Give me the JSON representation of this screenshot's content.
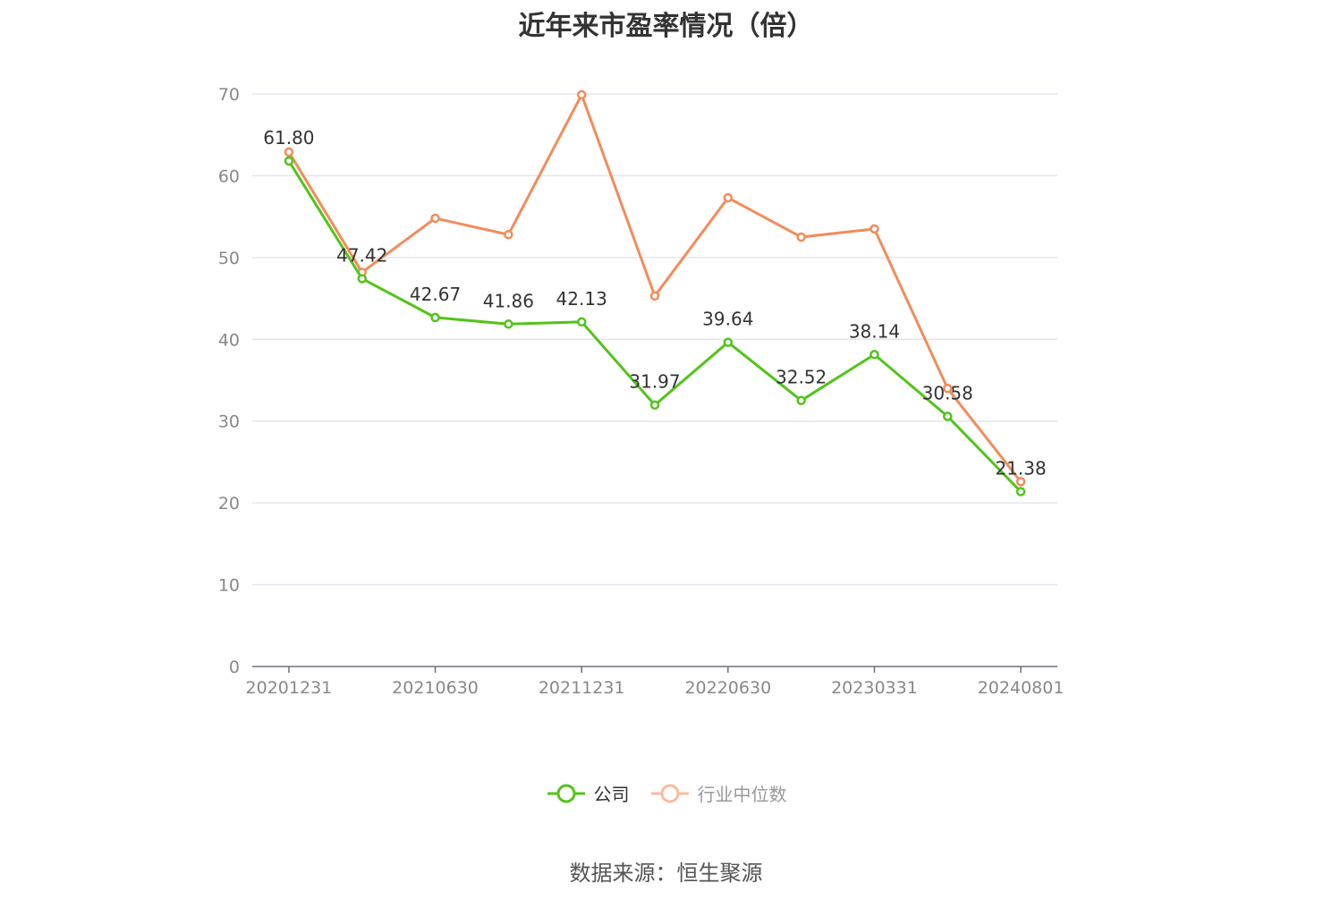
{
  "chart_data": {
    "type": "line",
    "title": "近年来市盈率情况（倍）",
    "categories": [
      "20201231",
      "",
      "20210630",
      "",
      "20211231",
      "",
      "20220630",
      "",
      "20230331",
      "",
      "20240801"
    ],
    "ylim": [
      0,
      70
    ],
    "yticks": [
      0,
      10,
      20,
      30,
      40,
      50,
      60,
      70
    ],
    "grid": true,
    "legend_position": "bottom",
    "series": [
      {
        "name": "公司",
        "color": "#52c41a",
        "labeled": true,
        "values": [
          61.8,
          47.42,
          42.67,
          41.86,
          42.13,
          31.97,
          39.64,
          32.52,
          38.14,
          30.58,
          21.38
        ]
      },
      {
        "name": "行业中位数",
        "color": "#f28c5a",
        "labeled": false,
        "values": [
          62.9,
          48.2,
          54.8,
          52.8,
          69.9,
          45.3,
          57.3,
          52.5,
          53.5,
          34.0,
          22.6
        ]
      }
    ]
  },
  "legend": {
    "items": [
      {
        "label": "公司",
        "color": "#52c41a",
        "state": "active"
      },
      {
        "label": "行业中位数",
        "color": "#f9bba0",
        "state": "inactive"
      }
    ]
  },
  "source": "数据来源：恒生聚源"
}
